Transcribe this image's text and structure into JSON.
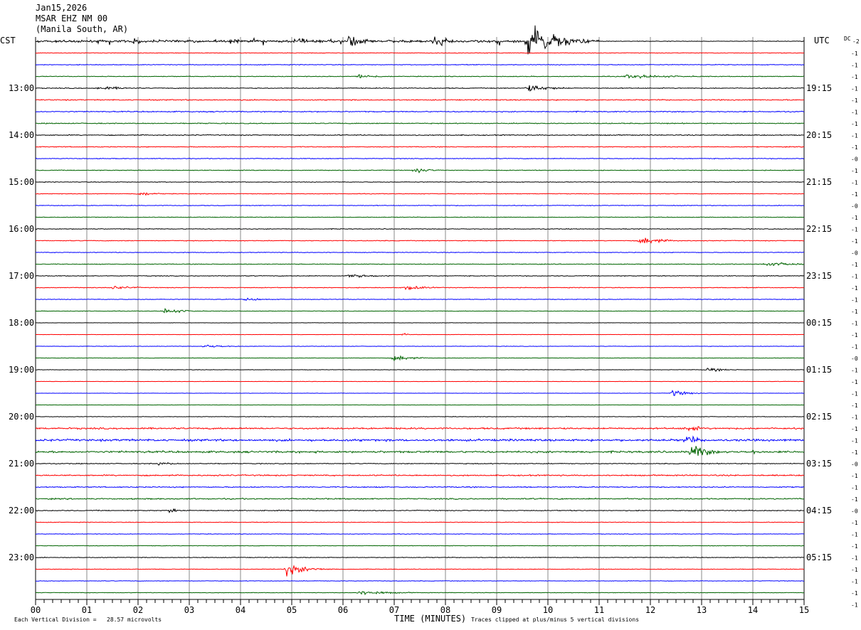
{
  "header": {
    "date": "Jan15,2026",
    "station": "MSAR EHZ NM 00",
    "location": "(Manila South, AR)"
  },
  "axis": {
    "left_zone": "CST",
    "right_zone": "UTC",
    "dc_label": "DC",
    "dc_top_value": "-2",
    "x_title": "TIME (MINUTES)"
  },
  "footer": {
    "scale_note": "Each Vertical Division =   28.57 microvolts",
    "clip_note": "Traces clipped at plus/minus 5 vertical divisions"
  },
  "chart_data": {
    "type": "line",
    "x": {
      "label": "TIME (MINUTES)",
      "range": [
        0,
        15
      ],
      "ticks": [
        "00",
        "01",
        "02",
        "03",
        "04",
        "05",
        "06",
        "07",
        "08",
        "09",
        "10",
        "11",
        "12",
        "13",
        "14",
        "15"
      ]
    },
    "line_minutes": 15,
    "rows": 48,
    "colors": [
      "#000000",
      "#ff0000",
      "#0000ff",
      "#006400"
    ],
    "left_hour_labels": [
      {
        "row": 4,
        "text": "13:00"
      },
      {
        "row": 8,
        "text": "14:00"
      },
      {
        "row": 12,
        "text": "15:00"
      },
      {
        "row": 16,
        "text": "16:00"
      },
      {
        "row": 20,
        "text": "17:00"
      },
      {
        "row": 24,
        "text": "18:00"
      },
      {
        "row": 28,
        "text": "19:00"
      },
      {
        "row": 32,
        "text": "20:00"
      },
      {
        "row": 36,
        "text": "21:00"
      },
      {
        "row": 40,
        "text": "22:00"
      },
      {
        "row": 44,
        "text": "23:00"
      }
    ],
    "right_hour_labels": [
      {
        "row": 4,
        "text": "19:15"
      },
      {
        "row": 8,
        "text": "20:15"
      },
      {
        "row": 12,
        "text": "21:15"
      },
      {
        "row": 16,
        "text": "22:15"
      },
      {
        "row": 20,
        "text": "23:15"
      },
      {
        "row": 24,
        "text": "00:15"
      },
      {
        "row": 28,
        "text": "01:15"
      },
      {
        "row": 32,
        "text": "02:15"
      },
      {
        "row": 36,
        "text": "03:15"
      },
      {
        "row": 40,
        "text": "04:15"
      },
      {
        "row": 44,
        "text": "05:15"
      }
    ],
    "dc_offsets": [
      "-1",
      "-1",
      "-1",
      "-1",
      "-1",
      "-1",
      "-1",
      "-1",
      "-1",
      "-0",
      "-1",
      "-1",
      "-1",
      "-0",
      "-1",
      "-1",
      "-1",
      "-0",
      "-1",
      "-1",
      "-1",
      "-1",
      "-1",
      "-1",
      "-1",
      "-1",
      "-0",
      "-1",
      "-1",
      "-1",
      "-1",
      "-1",
      "-1",
      "-1",
      "-1",
      "-0",
      "-1",
      "-1",
      "-1",
      "-0",
      "-1",
      "-1",
      "-1",
      "-1",
      "-1",
      "-1",
      "-1",
      "-1"
    ],
    "trace_noise": [
      0.5,
      0.6,
      0.7,
      0.7,
      0.8,
      1.0,
      1.0,
      0.9,
      0.9,
      0.8,
      0.7,
      0.7,
      0.6,
      0.6,
      0.6,
      0.6,
      0.7,
      0.7,
      0.6,
      0.7,
      0.7,
      0.7,
      0.6,
      0.5,
      0.3,
      0.3,
      0.4,
      0.4,
      0.4,
      0.3,
      0.3,
      0.3,
      0.5,
      1.5,
      2.0,
      1.8,
      0.8,
      1.2,
      1.0,
      1.2,
      0.8,
      0.6,
      0.5,
      0.5,
      0.6,
      0.6,
      0.5,
      0.5
    ],
    "events": [
      {
        "row": 0,
        "minute": 0.0,
        "amplitude": 10,
        "duration": 11.0,
        "kind": "noise"
      },
      {
        "row": 0,
        "minute": 1.9,
        "amplitude": 12,
        "duration": 0.1
      },
      {
        "row": 0,
        "minute": 3.8,
        "amplitude": 8,
        "duration": 0.2
      },
      {
        "row": 0,
        "minute": 5.1,
        "amplitude": 12,
        "duration": 0.2
      },
      {
        "row": 0,
        "minute": 6.1,
        "amplitude": 18,
        "duration": 0.3
      },
      {
        "row": 0,
        "minute": 7.8,
        "amplitude": 16,
        "duration": 0.3
      },
      {
        "row": 0,
        "minute": 9.6,
        "amplitude": 40,
        "duration": 0.7
      },
      {
        "row": 3,
        "minute": 6.3,
        "amplitude": 5,
        "duration": 0.5
      },
      {
        "row": 3,
        "minute": 11.5,
        "amplitude": 4,
        "duration": 1.4
      },
      {
        "row": 4,
        "minute": 1.2,
        "amplitude": 4,
        "duration": 0.8
      },
      {
        "row": 4,
        "minute": 9.6,
        "amplitude": 8,
        "duration": 0.6
      },
      {
        "row": 11,
        "minute": 7.4,
        "amplitude": 6,
        "duration": 0.4
      },
      {
        "row": 13,
        "minute": 2.0,
        "amplitude": 5,
        "duration": 0.4
      },
      {
        "row": 17,
        "minute": 11.8,
        "amplitude": 9,
        "duration": 0.5
      },
      {
        "row": 19,
        "minute": 14.2,
        "amplitude": 5,
        "duration": 0.8
      },
      {
        "row": 20,
        "minute": 6.1,
        "amplitude": 4,
        "duration": 0.8
      },
      {
        "row": 21,
        "minute": 1.5,
        "amplitude": 4,
        "duration": 0.6
      },
      {
        "row": 21,
        "minute": 7.2,
        "amplitude": 5,
        "duration": 0.6
      },
      {
        "row": 22,
        "minute": 4.1,
        "amplitude": 4,
        "duration": 0.4
      },
      {
        "row": 23,
        "minute": 2.5,
        "amplitude": 6,
        "duration": 0.5
      },
      {
        "row": 25,
        "minute": 7.2,
        "amplitude": 5,
        "duration": 0.05
      },
      {
        "row": 26,
        "minute": 3.3,
        "amplitude": 4,
        "duration": 0.5
      },
      {
        "row": 27,
        "minute": 7.0,
        "amplitude": 7,
        "duration": 0.4
      },
      {
        "row": 28,
        "minute": 13.1,
        "amplitude": 4,
        "duration": 0.5
      },
      {
        "row": 30,
        "minute": 12.4,
        "amplitude": 7,
        "duration": 0.4
      },
      {
        "row": 33,
        "minute": 12.7,
        "amplitude": 8,
        "duration": 0.4
      },
      {
        "row": 34,
        "minute": 12.7,
        "amplitude": 12,
        "duration": 0.3
      },
      {
        "row": 35,
        "minute": 12.8,
        "amplitude": 18,
        "duration": 0.4
      },
      {
        "row": 35,
        "minute": 14.0,
        "amplitude": 5,
        "duration": 0.2
      },
      {
        "row": 36,
        "minute": 2.4,
        "amplitude": 4,
        "duration": 0.4
      },
      {
        "row": 40,
        "minute": 2.6,
        "amplitude": 5,
        "duration": 0.3
      },
      {
        "row": 45,
        "minute": 4.9,
        "amplitude": 13,
        "duration": 0.5
      },
      {
        "row": 47,
        "minute": 6.3,
        "amplitude": 5,
        "duration": 0.8
      }
    ]
  }
}
